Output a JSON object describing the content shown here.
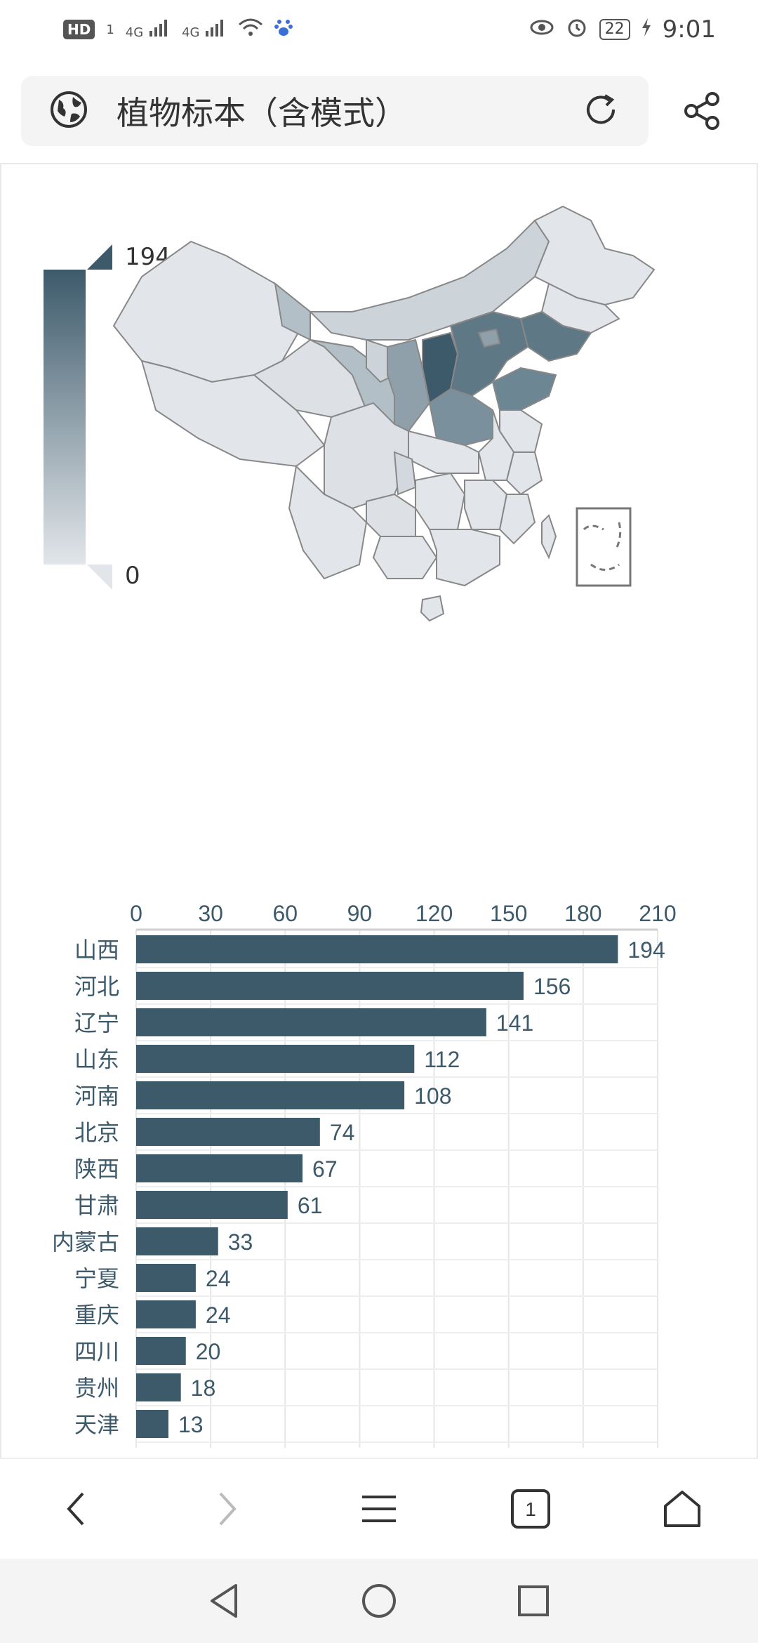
{
  "status_bar": {
    "hd_label": "HD",
    "sim_label": "1",
    "net_label_1": "4G",
    "net_label_2": "4G",
    "battery": "22",
    "time": "9:01"
  },
  "address_bar": {
    "title": "植物标本（含模式）",
    "icons": [
      "globe-icon",
      "refresh-icon",
      "share-icon"
    ]
  },
  "visual_map": {
    "max_label": "194",
    "min_label": "0",
    "colors": [
      "#3d5a6b",
      "#e2e6ea"
    ]
  },
  "chart_data": {
    "type": "bar",
    "orientation": "horizontal",
    "categories": [
      "山西",
      "河北",
      "辽宁",
      "山东",
      "河南",
      "北京",
      "陕西",
      "甘肃",
      "内蒙古",
      "宁夏",
      "重庆",
      "四川",
      "贵州",
      "天津"
    ],
    "values": [
      194,
      156,
      141,
      112,
      108,
      74,
      67,
      61,
      33,
      24,
      24,
      20,
      18,
      13
    ],
    "x_ticks": [
      "0",
      "30",
      "60",
      "90",
      "120",
      "150",
      "180",
      "210"
    ],
    "xlim": [
      0,
      210
    ],
    "bar_color": "#3d5a6b",
    "grid": true,
    "axis_position": "top"
  },
  "bottom_nav": {
    "icons": [
      "back-icon",
      "forward-icon",
      "menu-icon",
      "tabs-icon",
      "home-icon"
    ],
    "tabs_count": "1"
  },
  "system_nav": {
    "icons": [
      "system-back-icon",
      "system-home-icon",
      "system-recents-icon"
    ]
  }
}
